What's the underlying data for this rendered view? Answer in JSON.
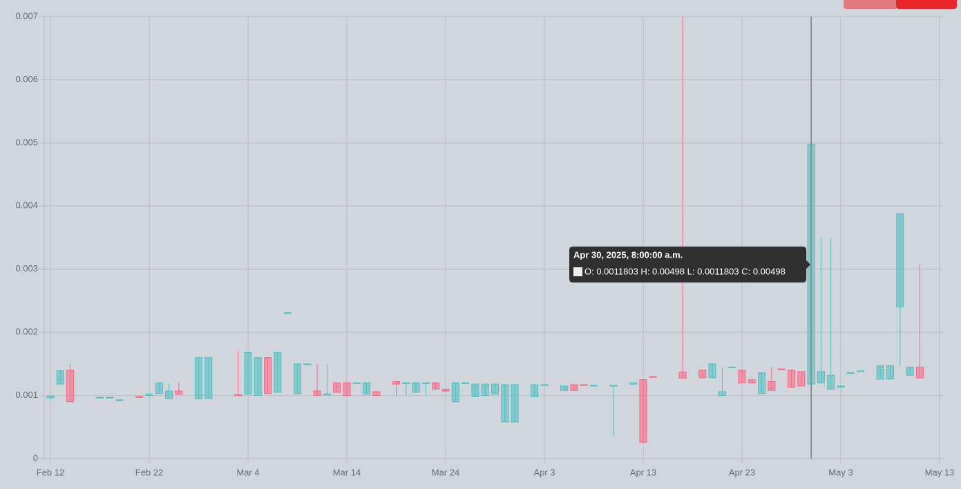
{
  "chart_data": {
    "type": "candlestick",
    "x": [
      "2025-02-12",
      "2025-02-13",
      "2025-02-14",
      "2025-02-17",
      "2025-02-18",
      "2025-02-19",
      "2025-02-21",
      "2025-02-22",
      "2025-02-23",
      "2025-02-24",
      "2025-02-25",
      "2025-02-27",
      "2025-02-28",
      "2025-03-03",
      "2025-03-04",
      "2025-03-05",
      "2025-03-06",
      "2025-03-07",
      "2025-03-08",
      "2025-03-09",
      "2025-03-10",
      "2025-03-11",
      "2025-03-12",
      "2025-03-13",
      "2025-03-14",
      "2025-03-15",
      "2025-03-16",
      "2025-03-17",
      "2025-03-19",
      "2025-03-20",
      "2025-03-21",
      "2025-03-22",
      "2025-03-23",
      "2025-03-24",
      "2025-03-25",
      "2025-03-26",
      "2025-03-27",
      "2025-03-28",
      "2025-03-29",
      "2025-03-30",
      "2025-03-31",
      "2025-04-02",
      "2025-04-03",
      "2025-04-05",
      "2025-04-06",
      "2025-04-07",
      "2025-04-08",
      "2025-04-10",
      "2025-04-12",
      "2025-04-13",
      "2025-04-14",
      "2025-04-17",
      "2025-04-19",
      "2025-04-20",
      "2025-04-21",
      "2025-04-22",
      "2025-04-23",
      "2025-04-24",
      "2025-04-25",
      "2025-04-26",
      "2025-04-27",
      "2025-04-28",
      "2025-04-29",
      "2025-04-30",
      "2025-05-01",
      "2025-05-02",
      "2025-05-03",
      "2025-05-04",
      "2025-05-05",
      "2025-05-07",
      "2025-05-08",
      "2025-05-09",
      "2025-05-10",
      "2025-05-11"
    ],
    "open": [
      0.00096,
      0.00118,
      0.0014,
      0.00096,
      0.00096,
      0.00092,
      0.00098,
      0.001,
      0.00103,
      0.00095,
      0.00107,
      0.00095,
      0.00095,
      0.00101,
      0.00102,
      0.001,
      0.0016,
      0.00105,
      0.0023,
      0.00103,
      0.00149,
      0.00107,
      0.00101,
      0.0012,
      0.0012,
      0.00119,
      0.00102,
      0.00106,
      0.00122,
      0.00119,
      0.00105,
      0.00119,
      0.0012,
      0.0011,
      0.0009,
      0.00119,
      0.00098,
      0.001,
      0.00102,
      0.00058,
      0.00058,
      0.00098,
      0.00116,
      0.00108,
      0.00117,
      0.00117,
      0.00115,
      0.00115,
      0.00118,
      0.00125,
      0.0013,
      0.00137,
      0.0014,
      0.00128,
      0.001,
      0.00144,
      0.0014,
      0.00125,
      0.00103,
      0.00122,
      0.00142,
      0.0014,
      0.00138,
      0.0011803,
      0.0012,
      0.0011,
      0.00113,
      0.00135,
      0.00138,
      0.00126,
      0.00126,
      0.0024,
      0.00132,
      0.00145
    ],
    "high": [
      0.001,
      0.0014,
      0.0015,
      0.00097,
      0.00097,
      0.00094,
      0.00098,
      0.00103,
      0.0012,
      0.0012,
      0.0012,
      0.0016,
      0.0016,
      0.0017,
      0.00168,
      0.0016,
      0.0016,
      0.00168,
      0.00232,
      0.0015,
      0.0015,
      0.0015,
      0.0015,
      0.0012,
      0.0012,
      0.0012,
      0.0012,
      0.00106,
      0.00122,
      0.0012,
      0.0012,
      0.0012,
      0.0012,
      0.0011,
      0.0012,
      0.0012,
      0.00118,
      0.00118,
      0.00118,
      0.00117,
      0.00117,
      0.00117,
      0.00117,
      0.00115,
      0.00117,
      0.00117,
      0.00116,
      0.00116,
      0.0012,
      0.00125,
      0.0013,
      0.007,
      0.0014,
      0.0015,
      0.00145,
      0.00145,
      0.0014,
      0.00125,
      0.00136,
      0.00145,
      0.00142,
      0.0014,
      0.00138,
      0.00498,
      0.0035,
      0.0035,
      0.00115,
      0.00136,
      0.00139,
      0.00147,
      0.00147,
      0.00388,
      0.00145,
      0.00307
    ],
    "low": [
      0.00095,
      0.00118,
      0.0009,
      0.00095,
      0.00095,
      0.00092,
      0.00096,
      0.001,
      0.00103,
      0.00095,
      0.00102,
      0.00095,
      0.00095,
      0.001,
      0.00102,
      0.001,
      0.00103,
      0.00105,
      0.0023,
      0.00103,
      0.00149,
      0.001,
      0.00101,
      0.00105,
      0.001,
      0.00119,
      0.00102,
      0.001,
      0.001,
      0.001,
      0.00105,
      0.001,
      0.0011,
      0.00107,
      0.0009,
      0.00119,
      0.00098,
      0.001,
      0.00102,
      0.00058,
      0.00058,
      0.00098,
      0.00116,
      0.00108,
      0.00108,
      0.00116,
      0.00115,
      0.00036,
      0.00118,
      0.00026,
      0.00129,
      0.00127,
      0.00128,
      0.00128,
      0.001,
      0.00144,
      0.0012,
      0.0012,
      0.00103,
      0.00108,
      0.00141,
      0.00113,
      0.00115,
      0.0011803,
      0.0012,
      0.0011,
      0.00113,
      0.00135,
      0.00138,
      0.00126,
      0.00126,
      0.00148,
      0.00132,
      0.00128
    ],
    "close": [
      0.00099,
      0.00139,
      0.0009,
      0.00097,
      0.00097,
      0.00093,
      0.00097,
      0.00102,
      0.0012,
      0.00107,
      0.00102,
      0.0016,
      0.0016,
      0.001,
      0.00168,
      0.0016,
      0.00103,
      0.00168,
      0.00231,
      0.0015,
      0.0015,
      0.001,
      0.00102,
      0.00105,
      0.001,
      0.0012,
      0.0012,
      0.001,
      0.00118,
      0.0012,
      0.0012,
      0.0012,
      0.0011,
      0.00107,
      0.0012,
      0.0012,
      0.00118,
      0.00118,
      0.00118,
      0.00117,
      0.00117,
      0.00117,
      0.00117,
      0.00115,
      0.00108,
      0.00116,
      0.00116,
      0.00116,
      0.0012,
      0.00026,
      0.00129,
      0.00127,
      0.00128,
      0.0015,
      0.00106,
      0.00145,
      0.0012,
      0.0012,
      0.00136,
      0.00108,
      0.00141,
      0.00113,
      0.00115,
      0.00498,
      0.00138,
      0.00132,
      0.00115,
      0.00136,
      0.00139,
      0.00147,
      0.00147,
      0.00388,
      0.00145,
      0.00128
    ],
    "up_color": "#4bc0c0",
    "down_color": "#ff6384",
    "xlim": [
      "2025-02-11",
      "2025-05-14"
    ],
    "xticks": [
      {
        "value": "2025-02-12",
        "label": "Feb 12"
      },
      {
        "value": "2025-02-22",
        "label": "Feb 22"
      },
      {
        "value": "2025-03-04",
        "label": "Mar 4"
      },
      {
        "value": "2025-03-14",
        "label": "Mar 14"
      },
      {
        "value": "2025-03-24",
        "label": "Mar 24"
      },
      {
        "value": "2025-04-03",
        "label": "Apr 3"
      },
      {
        "value": "2025-04-13",
        "label": "Apr 13"
      },
      {
        "value": "2025-04-23",
        "label": "Apr 23"
      },
      {
        "value": "2025-05-03",
        "label": "May 3"
      },
      {
        "value": "2025-05-13",
        "label": "May 13"
      }
    ],
    "ylim": [
      0,
      0.007
    ],
    "yticks": [
      0,
      0.001,
      0.002,
      0.003,
      0.004,
      0.005,
      0.006,
      0.007
    ],
    "grid": true,
    "tooltip": {
      "index": 63,
      "title": "Apr 30, 2025, 8:00:00 a.m.",
      "text": "O: 0.0011803  H: 0.00498  L: 0.0011803  C: 0.00498"
    }
  }
}
